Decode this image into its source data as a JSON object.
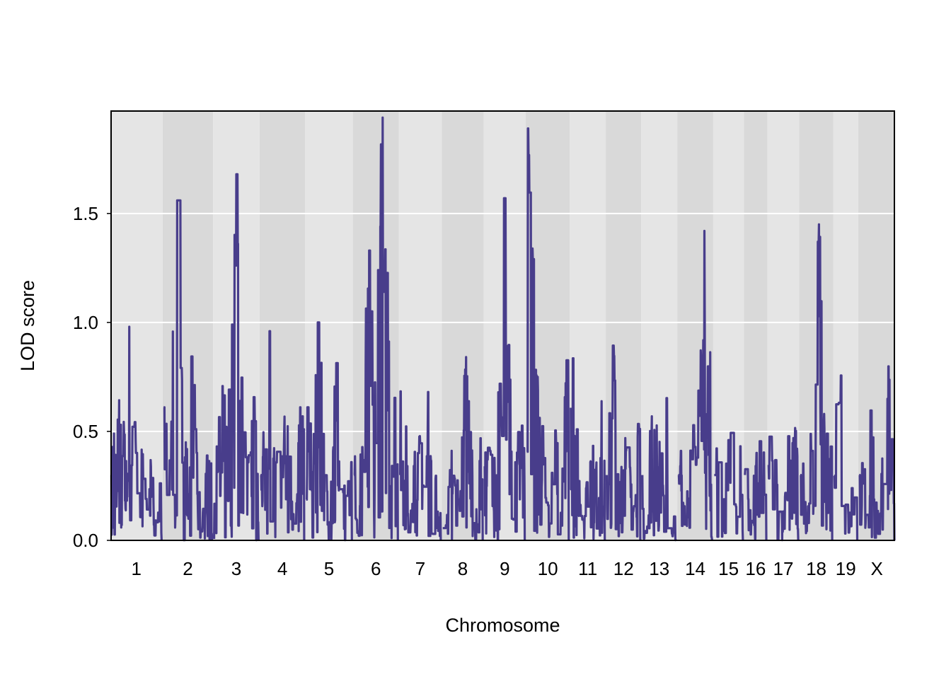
{
  "chart_data": {
    "type": "line",
    "title": "",
    "xlabel": "Chromosome",
    "ylabel": "LOD score",
    "ylim": [
      0,
      1.97
    ],
    "yticks": [
      0.0,
      0.5,
      1.0,
      1.5
    ],
    "ytick_labels": [
      "0.0",
      "0.5",
      "1.0",
      "1.5"
    ],
    "grid": "horizontal",
    "line_color": "#483d8b",
    "band_colors": [
      "#e5e5e5",
      "#d9d9d9"
    ],
    "chromosomes": [
      {
        "label": "1",
        "start": 0.0,
        "end": 12.5
      },
      {
        "label": "2",
        "start": 13.0,
        "end": 25.0
      },
      {
        "label": "3",
        "start": 25.5,
        "end": 36.5
      },
      {
        "label": "4",
        "start": 37.0,
        "end": 47.8
      },
      {
        "label": "5",
        "start": 48.3,
        "end": 59.6
      },
      {
        "label": "6",
        "start": 60.1,
        "end": 71.0
      },
      {
        "label": "7",
        "start": 71.5,
        "end": 81.6
      },
      {
        "label": "8",
        "start": 82.1,
        "end": 92.0
      },
      {
        "label": "9",
        "start": 92.5,
        "end": 102.4
      },
      {
        "label": "10",
        "start": 102.9,
        "end": 113.3
      },
      {
        "label": "11",
        "start": 113.8,
        "end": 122.2
      },
      {
        "label": "12",
        "start": 122.7,
        "end": 131.0
      },
      {
        "label": "13",
        "start": 131.5,
        "end": 139.9
      },
      {
        "label": "14",
        "start": 140.4,
        "end": 148.8
      },
      {
        "label": "15",
        "start": 149.3,
        "end": 156.4
      },
      {
        "label": "16",
        "start": 156.9,
        "end": 162.2
      },
      {
        "label": "17",
        "start": 162.7,
        "end": 170.1
      },
      {
        "label": "18",
        "start": 170.6,
        "end": 178.5
      },
      {
        "label": "19",
        "start": 179.0,
        "end": 184.7
      },
      {
        "label": "X",
        "start": 185.2,
        "end": 193.9
      }
    ],
    "peaks": [
      {
        "x": 4.5,
        "y": 0.98
      },
      {
        "x": 16.4,
        "y": 1.56
      },
      {
        "x": 31.0,
        "y": 1.68
      },
      {
        "x": 39.2,
        "y": 0.96
      },
      {
        "x": 51.2,
        "y": 1.0
      },
      {
        "x": 63.9,
        "y": 1.33
      },
      {
        "x": 67.2,
        "y": 1.94
      },
      {
        "x": 97.3,
        "y": 1.57
      },
      {
        "x": 103.2,
        "y": 1.89
      },
      {
        "x": 146.9,
        "y": 1.42
      },
      {
        "x": 175.2,
        "y": 1.45
      }
    ]
  }
}
